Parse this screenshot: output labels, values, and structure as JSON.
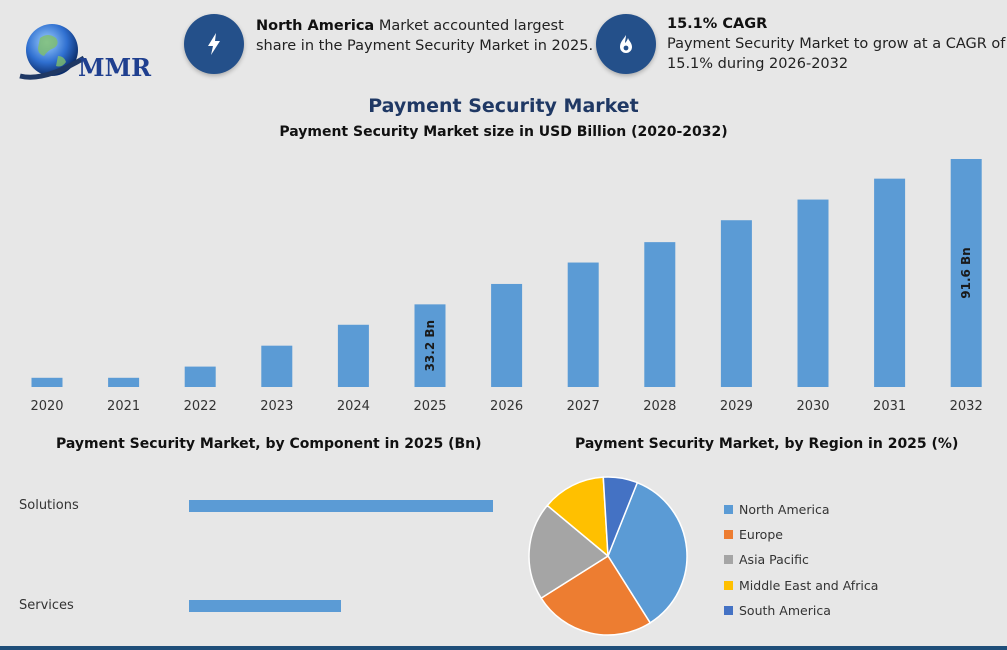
{
  "logo": {
    "text": "MMR"
  },
  "info1": {
    "icon": "lightning-icon",
    "bold": "North America",
    "line1_rest": " Market accounted largest",
    "line2": "share in the Payment Security Market in 2025."
  },
  "info2": {
    "icon": "flame-icon",
    "bold": "15.1% CAGR",
    "line1": "Payment Security Market to grow at a CAGR of",
    "line2": "15.1% during 2026-2032"
  },
  "header": {
    "title": "Payment Security Market",
    "subtitle": "Payment Security Market size in USD Billion (2020-2032)"
  },
  "colors": {
    "bar": "#5b9bd5",
    "title": "#1f3864",
    "icon_bg": "#24508a"
  },
  "chart_data": [
    {
      "type": "bar",
      "title": "Payment Security Market size in USD Billion (2020-2032)",
      "categories": [
        "2020",
        "2021",
        "2022",
        "2023",
        "2024",
        "2025",
        "2026",
        "2027",
        "2028",
        "2029",
        "2030",
        "2031",
        "2032"
      ],
      "values": [
        3.7,
        3.7,
        8.2,
        16.6,
        25.0,
        33.2,
        41.4,
        50.0,
        58.2,
        67.0,
        75.3,
        83.7,
        91.6
      ],
      "data_labels": {
        "2025": "33.2 Bn",
        "2032": "91.6 Bn"
      },
      "ylim": [
        0,
        92
      ],
      "grid": false
    },
    {
      "type": "bar",
      "orientation": "horizontal",
      "title": "Payment Security Market, by Component in 2025 (Bn)",
      "categories": [
        "Solutions",
        "Services"
      ],
      "values": [
        22.0,
        11.0
      ],
      "xlim": [
        0,
        22
      ]
    },
    {
      "type": "pie",
      "title": "Payment Security Market, by Region in 2025 (%)",
      "categories": [
        "North America",
        "Europe",
        "Asia Pacific",
        "Middle East and Africa",
        "South America"
      ],
      "values": [
        35,
        25,
        20,
        13,
        7
      ],
      "colors": [
        "#5b9bd5",
        "#ed7d31",
        "#a5a5a5",
        "#ffc000",
        "#4472c4"
      ],
      "legend": "right"
    }
  ]
}
